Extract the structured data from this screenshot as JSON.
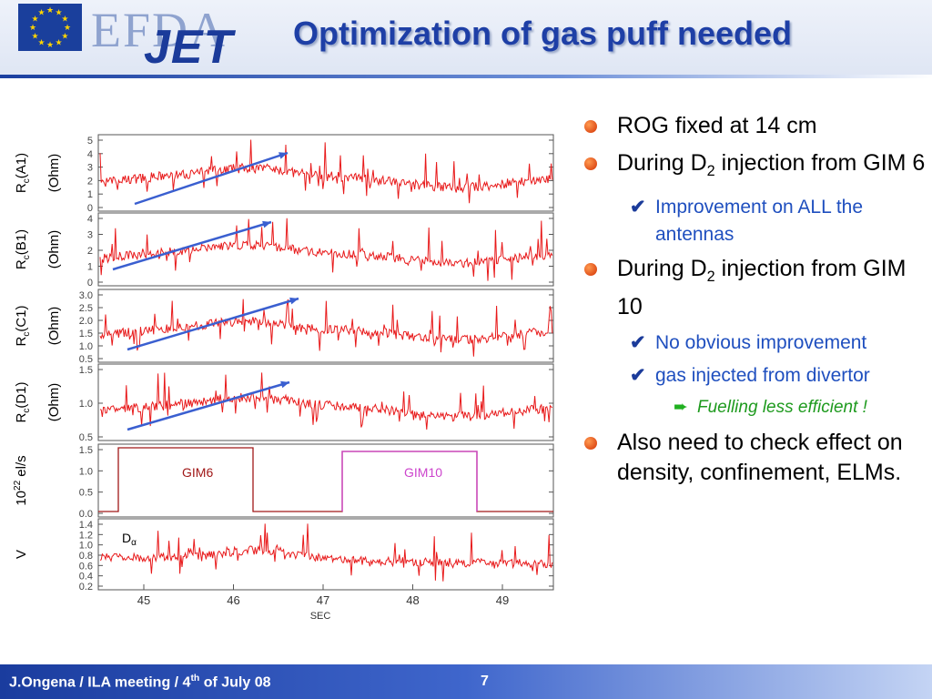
{
  "header": {
    "logo_efda": "EFDA",
    "logo_jet": "JET",
    "title": "Optimization of gas puff needed"
  },
  "figure": {
    "panels": [
      {
        "ylabel_main": "R",
        "ylabel_sub": "c",
        "ylabel_tail": "(A1)",
        "unit": "(Ohm)",
        "ticks": [
          "5",
          "4",
          "3",
          "2",
          "1",
          "0"
        ]
      },
      {
        "ylabel_main": "R",
        "ylabel_sub": "c",
        "ylabel_tail": "(B1)",
        "unit": "(Ohm)",
        "ticks": [
          "4",
          "3",
          "2",
          "1",
          "0"
        ]
      },
      {
        "ylabel_main": "R",
        "ylabel_sub": "c",
        "ylabel_tail": "(C1)",
        "unit": "(Ohm)",
        "ticks": [
          "3.0",
          "2.5",
          "2.0",
          "1.5",
          "1.0",
          "0.5"
        ]
      },
      {
        "ylabel_main": "R",
        "ylabel_sub": "c",
        "ylabel_tail": "(D1)",
        "unit": "(Ohm)",
        "ticks": [
          "1.5",
          "1.0",
          "0.5"
        ]
      },
      {
        "ylabel_main": "10",
        "ylabel_sup": "22",
        "ylabel_tail": " el/s",
        "unit": "",
        "ticks": [
          "1.5",
          "1.0",
          "0.5",
          "0.0"
        ]
      },
      {
        "ylabel_main": "V",
        "unit": "",
        "ticks": [
          "1.4",
          "1.2",
          "1.0",
          "0.8",
          "0.6",
          "0.4",
          "0.2"
        ]
      }
    ],
    "xticks": [
      "45",
      "46",
      "47",
      "48",
      "49"
    ],
    "xlabel": "SEC",
    "gim6_label": "GIM6",
    "gim10_label": "GIM10",
    "dalpha_main": "D",
    "dalpha_sub": "α",
    "colors": {
      "signal": "#e8191a",
      "arrow": "#3a5fd0",
      "gim6": "#a01818",
      "gim10": "#cc44cc"
    }
  },
  "bullets": [
    {
      "level": 1,
      "parts": [
        {
          "t": "ROG fixed at 14 cm"
        }
      ]
    },
    {
      "level": 1,
      "parts": [
        {
          "t": "During D"
        },
        {
          "sub": "2"
        },
        {
          "t": " injection from GIM 6"
        }
      ]
    },
    {
      "level": 2,
      "parts": [
        {
          "t": "Improvement on ALL the antennas"
        }
      ]
    },
    {
      "level": 1,
      "parts": [
        {
          "t": "During D"
        },
        {
          "sub": "2"
        },
        {
          "t": " injection from GIM 10"
        }
      ]
    },
    {
      "level": 2,
      "parts": [
        {
          "t": "No obvious improvement"
        }
      ]
    },
    {
      "level": 2,
      "parts": [
        {
          "t": "gas injected from divertor"
        }
      ]
    },
    {
      "level": 3,
      "parts": [
        {
          "t": "Fuelling less efficient !"
        }
      ]
    },
    {
      "level": 1,
      "parts": [
        {
          "t": "Also need to check effect on density, confinement, ELMs."
        }
      ]
    }
  ],
  "footer": {
    "author": "J.Ongena  / ILA meeting / 4",
    "sup": "th",
    "rest": " of July 08",
    "page": "7"
  }
}
